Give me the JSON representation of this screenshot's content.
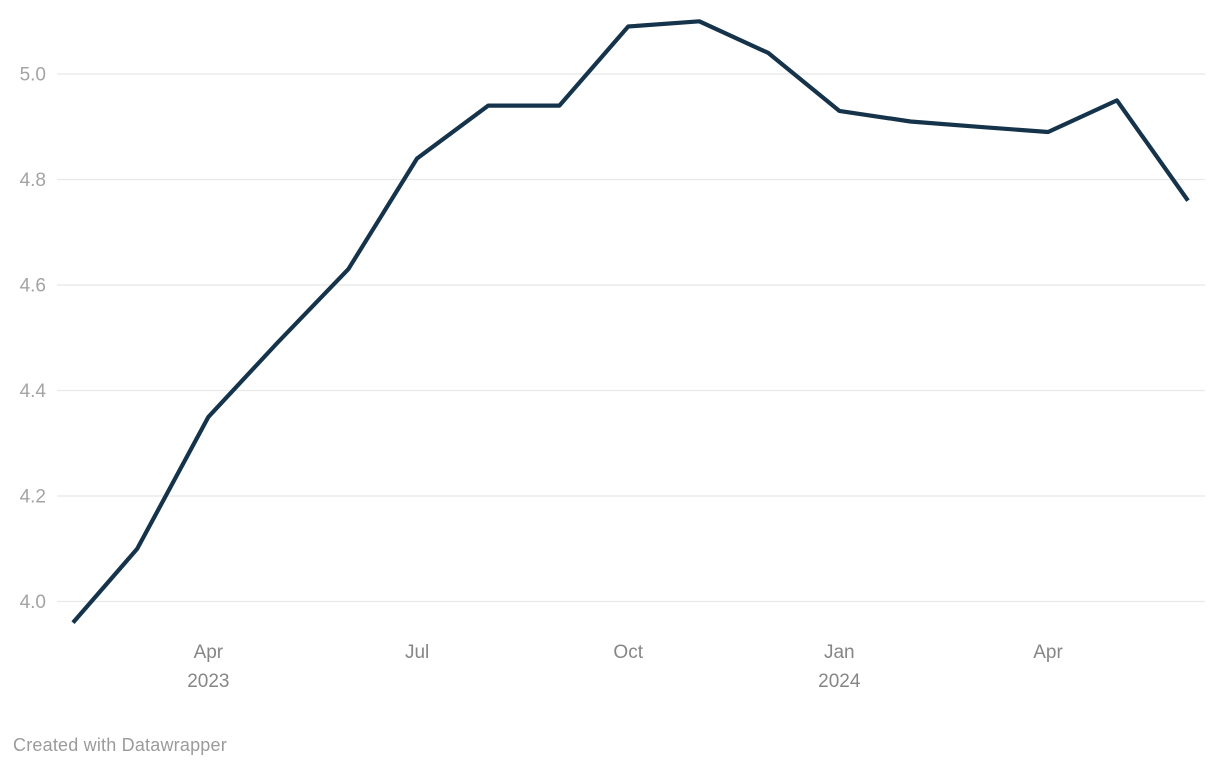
{
  "chart_data": {
    "type": "line",
    "title": "",
    "series_name": "",
    "x": [
      "2023-02-01",
      "2023-03-01",
      "2023-04-01",
      "2023-05-01",
      "2023-06-01",
      "2023-07-01",
      "2023-08-01",
      "2023-09-01",
      "2023-10-01",
      "2023-11-01",
      "2023-12-01",
      "2024-01-01",
      "2024-02-01",
      "2024-03-01",
      "2024-04-01",
      "2024-05-01",
      "2024-06-01"
    ],
    "values": [
      3.96,
      4.1,
      4.35,
      4.49,
      4.63,
      4.84,
      4.94,
      4.94,
      5.09,
      5.1,
      5.04,
      4.93,
      4.91,
      4.9,
      4.89,
      4.95,
      4.76
    ],
    "ylim": [
      3.95,
      5.14
    ],
    "yticks": [
      4.0,
      4.2,
      4.4,
      4.6,
      4.8,
      5.0
    ],
    "ytick_labels": [
      "4.0",
      "4.2",
      "4.4",
      "4.6",
      "4.8",
      "5.0"
    ],
    "xticks": [
      {
        "date": "2023-04-01",
        "label": "Apr",
        "sublabel": "2023"
      },
      {
        "date": "2023-07-01",
        "label": "Jul",
        "sublabel": ""
      },
      {
        "date": "2023-10-01",
        "label": "Oct",
        "sublabel": ""
      },
      {
        "date": "2024-01-01",
        "label": "Jan",
        "sublabel": "2024"
      },
      {
        "date": "2024-04-01",
        "label": "Apr",
        "sublabel": ""
      }
    ],
    "grid": "horizontal",
    "legend": "none",
    "colors": {
      "line": "#15334a",
      "grid": "#e8e8e8",
      "y_tick_label": "#a4a4a4",
      "x_tick_label": "#868686",
      "background": "#ffffff"
    }
  },
  "footer": {
    "attribution": "Created with Datawrapper"
  }
}
